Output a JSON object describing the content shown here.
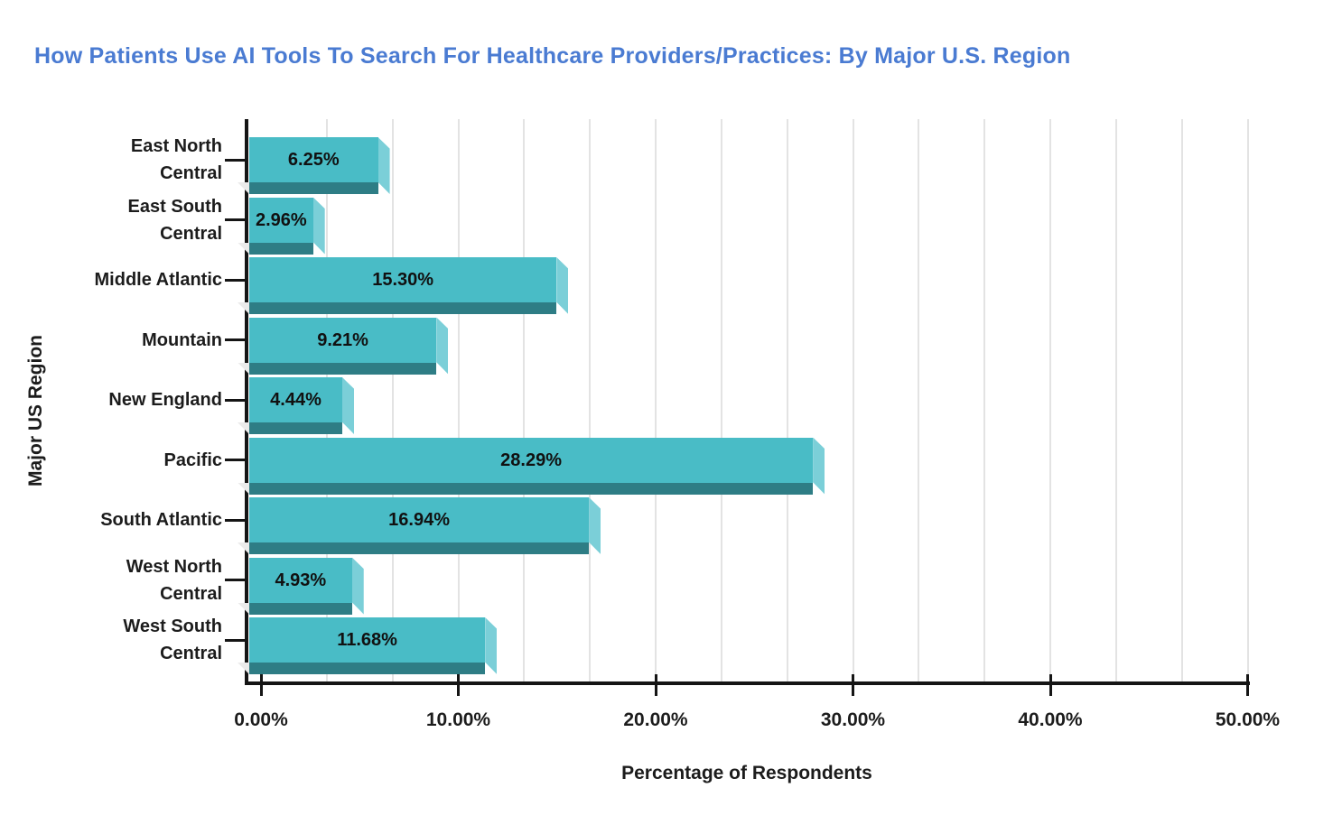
{
  "title": "How Patients Use AI Tools To Search For Healthcare Providers/Practices: By Major U.S. Region",
  "chart_data": {
    "type": "bar",
    "orientation": "horizontal",
    "title": "How Patients Use AI Tools To Search For Healthcare Providers/Practices: By Major U.S. Region",
    "xlabel": "Percentage of Respondents",
    "ylabel": "Major US Region",
    "categories": [
      "East North Central",
      "East South Central",
      "Middle Atlantic",
      "Mountain",
      "New England",
      "Pacific",
      "South Atlantic",
      "West North Central",
      "West South Central"
    ],
    "values": [
      6.25,
      2.96,
      15.3,
      9.21,
      4.44,
      28.29,
      16.94,
      4.93,
      11.68
    ],
    "labels": [
      "6.25%",
      "2.96%",
      "15.30%",
      "9.21%",
      "4.44%",
      "28.29%",
      "16.94%",
      "4.93%",
      "11.68%"
    ],
    "x_ticks": [
      "0.00%",
      "10.00%",
      "20.00%",
      "30.00%",
      "40.00%",
      "50.00%"
    ],
    "x_tick_values": [
      0,
      10,
      20,
      30,
      40,
      50
    ],
    "xlim": [
      0,
      50
    ],
    "minor_gridlines_per_major": 3,
    "grid": true,
    "legend": false,
    "colors": {
      "bar_face": "#49bcc6",
      "bar_side": "#7bcfd8",
      "bar_bottom": "#2e7d85",
      "bar_shadow": "#ebebeb",
      "title": "#4a7bd2",
      "axis": "#151515",
      "gridline": "#e3e3e3",
      "text": "#1c1c1c"
    }
  }
}
